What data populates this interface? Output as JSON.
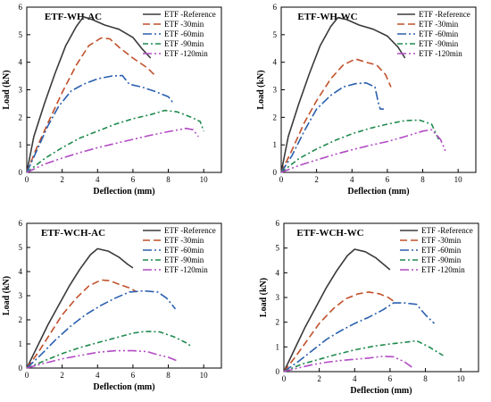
{
  "figure": {
    "panels": [
      {
        "id": "wh-ac"
      },
      {
        "id": "wh-wc"
      },
      {
        "id": "wch-ac"
      },
      {
        "id": "wch-wc"
      }
    ]
  },
  "chart_data": [
    {
      "type": "line",
      "title": "ETF-WH-AC",
      "xlabel": "Deflection (mm)",
      "ylabel": "Load (kN)",
      "xlim": [
        0,
        11
      ],
      "ylim": [
        0,
        6
      ],
      "xticks": [
        0,
        2,
        4,
        6,
        8,
        10
      ],
      "yticks": [
        0,
        1,
        2,
        3,
        4,
        5,
        6
      ],
      "legend_position": "top-right",
      "series": [
        {
          "name": "ETF -Reference",
          "color": "#3a3a3a",
          "dash": "solid",
          "x": [
            0,
            0.4,
            1.0,
            1.6,
            2.2,
            2.8,
            3.2,
            3.7,
            4.4,
            5.2,
            6.0,
            6.5,
            7.0
          ],
          "y": [
            0,
            1.3,
            2.5,
            3.6,
            4.6,
            5.3,
            5.65,
            5.55,
            5.35,
            5.2,
            4.9,
            4.5,
            4.15
          ]
        },
        {
          "name": "ETF -30min",
          "color": "#c0502a",
          "dash": "8,4",
          "x": [
            0,
            0.5,
            1.2,
            2.0,
            2.8,
            3.5,
            4.2,
            4.7,
            5.2,
            6.0,
            6.8,
            7.2
          ],
          "y": [
            0,
            0.8,
            1.8,
            2.9,
            3.9,
            4.6,
            4.88,
            4.85,
            4.55,
            4.15,
            3.8,
            3.55
          ]
        },
        {
          "name": "ETF -60min",
          "color": "#2a5fae",
          "dash": "10,3,2,3",
          "x": [
            0,
            0.5,
            1.2,
            1.8,
            2.5,
            3.2,
            4.0,
            4.8,
            5.4,
            5.8,
            6.5,
            7.2,
            8.0,
            8.3
          ],
          "y": [
            0,
            0.7,
            1.7,
            2.4,
            2.95,
            3.2,
            3.4,
            3.5,
            3.52,
            3.2,
            3.1,
            2.95,
            2.75,
            2.5
          ]
        },
        {
          "name": "ETF -90min",
          "color": "#1f8a4e",
          "dash": "6,3,2,3",
          "x": [
            0,
            1.0,
            2.0,
            3.0,
            4.0,
            5.0,
            6.0,
            7.0,
            7.8,
            8.5,
            9.3,
            9.8,
            10.0
          ],
          "y": [
            0,
            0.5,
            0.9,
            1.25,
            1.5,
            1.75,
            1.95,
            2.1,
            2.25,
            2.2,
            2.0,
            1.85,
            1.5
          ]
        },
        {
          "name": "ETF -120min",
          "color": "#b24bc4",
          "dash": "10,3,2,3,2,3",
          "x": [
            0,
            1.0,
            2.0,
            3.0,
            4.0,
            5.0,
            6.0,
            7.0,
            8.0,
            9.0,
            9.4,
            9.7
          ],
          "y": [
            0,
            0.3,
            0.52,
            0.72,
            0.9,
            1.05,
            1.2,
            1.35,
            1.48,
            1.6,
            1.55,
            1.3
          ]
        }
      ]
    },
    {
      "type": "line",
      "title": "ETF-WH-WC",
      "xlabel": "Deflection (mm)",
      "ylabel": "Load (kN)",
      "xlim": [
        0,
        11
      ],
      "ylim": [
        0,
        6
      ],
      "xticks": [
        0,
        2,
        4,
        6,
        8,
        10
      ],
      "yticks": [
        0,
        1,
        2,
        3,
        4,
        5,
        6
      ],
      "legend_position": "top-right",
      "series": [
        {
          "name": "ETF -Reference",
          "color": "#3a3a3a",
          "dash": "solid",
          "x": [
            0,
            0.4,
            1.0,
            1.6,
            2.2,
            2.8,
            3.2,
            3.7,
            4.4,
            5.2,
            6.0,
            6.6,
            7.0
          ],
          "y": [
            0,
            1.3,
            2.5,
            3.6,
            4.6,
            5.3,
            5.62,
            5.55,
            5.35,
            5.2,
            4.95,
            4.55,
            4.15
          ]
        },
        {
          "name": "ETF -30min",
          "color": "#c0502a",
          "dash": "8,4",
          "x": [
            0,
            0.6,
            1.3,
            2.0,
            2.8,
            3.5,
            4.2,
            4.8,
            5.4,
            5.9,
            6.2
          ],
          "y": [
            0,
            0.8,
            1.8,
            2.6,
            3.4,
            3.9,
            4.12,
            4.0,
            3.9,
            3.55,
            3.1
          ]
        },
        {
          "name": "ETF -60min",
          "color": "#2a5fae",
          "dash": "10,3,2,3",
          "x": [
            0,
            0.6,
            1.3,
            2.0,
            2.8,
            3.5,
            4.2,
            4.8,
            5.3,
            5.5,
            5.6,
            5.8
          ],
          "y": [
            0,
            0.6,
            1.5,
            2.3,
            2.8,
            3.1,
            3.22,
            3.25,
            3.1,
            2.5,
            2.3,
            2.3
          ]
        },
        {
          "name": "ETF -90min",
          "color": "#1f8a4e",
          "dash": "6,3,2,3",
          "x": [
            0,
            1.0,
            2.0,
            3.0,
            4.0,
            5.0,
            6.0,
            7.0,
            7.8,
            8.5,
            8.9
          ],
          "y": [
            0,
            0.5,
            0.85,
            1.15,
            1.4,
            1.6,
            1.75,
            1.88,
            1.9,
            1.75,
            1.2
          ]
        },
        {
          "name": "ETF -120min",
          "color": "#b24bc4",
          "dash": "10,3,2,3,2,3",
          "x": [
            0,
            1.0,
            2.0,
            3.0,
            4.0,
            5.0,
            6.0,
            7.0,
            8.0,
            8.5,
            9.0,
            9.3
          ],
          "y": [
            0,
            0.25,
            0.45,
            0.65,
            0.82,
            0.98,
            1.12,
            1.3,
            1.5,
            1.55,
            1.2,
            0.75
          ]
        }
      ]
    },
    {
      "type": "line",
      "title": "ETF-WCH-AC",
      "xlabel": "Deflection (mm)",
      "ylabel": "Load (kN)",
      "xlim": [
        0,
        11
      ],
      "ylim": [
        0,
        6
      ],
      "xticks": [
        0,
        2,
        4,
        6,
        8,
        10
      ],
      "yticks": [
        0,
        1,
        2,
        3,
        4,
        5,
        6
      ],
      "legend_position": "top-right",
      "series": [
        {
          "name": "ETF -Reference",
          "color": "#3a3a3a",
          "dash": "solid",
          "x": [
            0,
            0.6,
            1.2,
            1.8,
            2.4,
            3.0,
            3.6,
            4.0,
            4.6,
            5.2,
            5.7,
            6.0
          ],
          "y": [
            0,
            0.9,
            1.8,
            2.6,
            3.4,
            4.1,
            4.7,
            4.95,
            4.85,
            4.6,
            4.3,
            4.15
          ]
        },
        {
          "name": "ETF -30min",
          "color": "#c0502a",
          "dash": "8,4",
          "x": [
            0,
            0.6,
            1.3,
            2.0,
            2.8,
            3.5,
            4.2,
            4.7,
            5.3,
            5.9,
            6.2
          ],
          "y": [
            0,
            0.6,
            1.4,
            2.2,
            2.9,
            3.4,
            3.65,
            3.62,
            3.45,
            3.3,
            3.15
          ]
        },
        {
          "name": "ETF -60min",
          "color": "#2a5fae",
          "dash": "10,3,2,3",
          "x": [
            0,
            0.8,
            1.6,
            2.5,
            3.3,
            4.2,
            5.0,
            5.8,
            6.6,
            7.4,
            7.9,
            8.4
          ],
          "y": [
            0,
            0.55,
            1.15,
            1.75,
            2.2,
            2.6,
            2.9,
            3.15,
            3.2,
            3.15,
            2.9,
            2.45
          ]
        },
        {
          "name": "ETF -90min",
          "color": "#1f8a4e",
          "dash": "6,3,2,3",
          "x": [
            0,
            1.0,
            2.0,
            3.0,
            4.0,
            5.0,
            6.0,
            6.7,
            7.5,
            8.3,
            9.0,
            9.3
          ],
          "y": [
            0,
            0.3,
            0.6,
            0.85,
            1.05,
            1.25,
            1.45,
            1.52,
            1.5,
            1.3,
            1.05,
            0.9
          ]
        },
        {
          "name": "ETF -120min",
          "color": "#b24bc4",
          "dash": "10,3,2,3,2,3",
          "x": [
            0,
            1.0,
            2.0,
            3.0,
            4.0,
            5.0,
            6.0,
            6.8,
            7.4,
            8.0,
            8.5
          ],
          "y": [
            0,
            0.2,
            0.38,
            0.52,
            0.65,
            0.72,
            0.72,
            0.68,
            0.55,
            0.45,
            0.3
          ]
        }
      ]
    },
    {
      "type": "line",
      "title": "ETF-WCH-WC",
      "xlabel": "Deflection (mm)",
      "ylabel": "Load (kN)",
      "xlim": [
        0,
        11
      ],
      "ylim": [
        0,
        6
      ],
      "xticks": [
        0,
        2,
        4,
        6,
        8,
        10
      ],
      "yticks": [
        0,
        1,
        2,
        3,
        4,
        5,
        6
      ],
      "legend_position": "top-right",
      "series": [
        {
          "name": "ETF -Reference",
          "color": "#3a3a3a",
          "dash": "solid",
          "x": [
            0,
            0.6,
            1.2,
            1.8,
            2.4,
            3.0,
            3.6,
            4.0,
            4.6,
            5.2,
            5.7,
            6.0
          ],
          "y": [
            0,
            0.9,
            1.8,
            2.6,
            3.4,
            4.1,
            4.7,
            4.95,
            4.85,
            4.6,
            4.3,
            4.12
          ]
        },
        {
          "name": "ETF -30min",
          "color": "#c0502a",
          "dash": "8,4",
          "x": [
            0,
            0.6,
            1.3,
            2.0,
            2.8,
            3.5,
            4.2,
            4.8,
            5.4,
            5.9,
            6.2
          ],
          "y": [
            0,
            0.55,
            1.25,
            1.95,
            2.55,
            2.95,
            3.15,
            3.22,
            3.15,
            3.0,
            2.85
          ]
        },
        {
          "name": "ETF -60min",
          "color": "#2a5fae",
          "dash": "10,3,2,3",
          "x": [
            0,
            0.8,
            1.6,
            2.4,
            3.2,
            4.0,
            4.8,
            5.6,
            6.2,
            6.8,
            7.5,
            8.0,
            8.5
          ],
          "y": [
            0,
            0.4,
            0.85,
            1.3,
            1.65,
            1.95,
            2.2,
            2.5,
            2.78,
            2.78,
            2.72,
            2.3,
            1.95
          ]
        },
        {
          "name": "ETF -90min",
          "color": "#1f8a4e",
          "dash": "6,3,2,3",
          "x": [
            0,
            1.0,
            2.0,
            3.0,
            4.0,
            5.0,
            6.0,
            7.0,
            7.5,
            8.2,
            9.0
          ],
          "y": [
            0,
            0.3,
            0.5,
            0.7,
            0.88,
            1.02,
            1.12,
            1.2,
            1.25,
            1.0,
            0.65
          ]
        },
        {
          "name": "ETF -120min",
          "color": "#b24bc4",
          "dash": "10,3,2,3,2,3",
          "x": [
            0,
            0.8,
            1.6,
            2.4,
            3.2,
            4.0,
            4.8,
            5.6,
            6.2,
            6.8,
            7.3
          ],
          "y": [
            0,
            0.15,
            0.28,
            0.38,
            0.45,
            0.5,
            0.55,
            0.62,
            0.6,
            0.4,
            0.15
          ]
        }
      ]
    }
  ]
}
